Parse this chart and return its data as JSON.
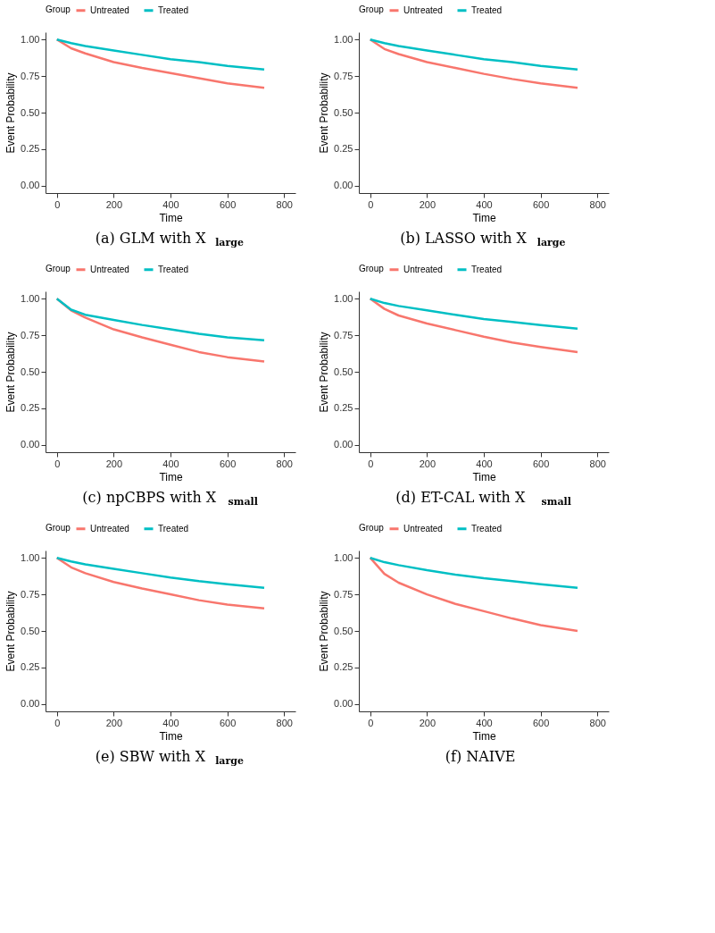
{
  "chart_data": [
    {
      "type": "line",
      "title": "(a) GLM with X$_{large}$",
      "xlabel": "Time",
      "ylabel": "Event Probability",
      "legend_title": "Group",
      "legend": "top",
      "grid": false,
      "line_style": "solid",
      "xlim": [
        -40,
        840
      ],
      "xticks": [
        0,
        200,
        400,
        600,
        800
      ],
      "ylim": [
        -0.05,
        1.05
      ],
      "yticks": [
        {
          "value": 0,
          "label": "0.00"
        },
        {
          "value": 0.25,
          "label": "0.25"
        },
        {
          "value": 0.5,
          "label": "0.50"
        },
        {
          "value": 0.75,
          "label": "0.75"
        },
        {
          "value": 1,
          "label": "1.00"
        }
      ],
      "x": [
        0,
        50,
        100,
        200,
        300,
        400,
        500,
        600,
        730
      ],
      "series": [
        {
          "name": "Untreated",
          "color": "#f8766d",
          "values": [
            1.0,
            0.94,
            0.905,
            0.845,
            0.805,
            0.77,
            0.735,
            0.7,
            0.67
          ]
        },
        {
          "name": "Treated",
          "color": "#00bfc4",
          "values": [
            1.0,
            0.975,
            0.955,
            0.925,
            0.895,
            0.865,
            0.845,
            0.82,
            0.795
          ]
        }
      ]
    },
    {
      "type": "line",
      "title": "(b) LASSO with X$_{large}$",
      "xlabel": "Time",
      "ylabel": "Event Probability",
      "legend_title": "Group",
      "legend": "top",
      "grid": false,
      "line_style": "solid",
      "xlim": [
        -40,
        840
      ],
      "xticks": [
        0,
        200,
        400,
        600,
        800
      ],
      "ylim": [
        -0.05,
        1.05
      ],
      "yticks": [
        {
          "value": 0,
          "label": "0.00"
        },
        {
          "value": 0.25,
          "label": "0.25"
        },
        {
          "value": 0.5,
          "label": "0.50"
        },
        {
          "value": 0.75,
          "label": "0.75"
        },
        {
          "value": 1,
          "label": "1.00"
        }
      ],
      "x": [
        0,
        50,
        100,
        200,
        300,
        400,
        500,
        600,
        730
      ],
      "series": [
        {
          "name": "Untreated",
          "color": "#f8766d",
          "values": [
            1.0,
            0.935,
            0.9,
            0.845,
            0.805,
            0.765,
            0.73,
            0.7,
            0.67
          ]
        },
        {
          "name": "Treated",
          "color": "#00bfc4",
          "values": [
            1.0,
            0.975,
            0.955,
            0.925,
            0.895,
            0.865,
            0.845,
            0.82,
            0.795
          ]
        }
      ]
    },
    {
      "type": "line",
      "title": "(c) npCBPS with X$_{small}$",
      "xlabel": "Time",
      "ylabel": "Event Probability",
      "legend_title": "Group",
      "legend": "top",
      "grid": false,
      "line_style": "solid",
      "xlim": [
        -40,
        840
      ],
      "xticks": [
        0,
        200,
        400,
        600,
        800
      ],
      "ylim": [
        -0.05,
        1.05
      ],
      "yticks": [
        {
          "value": 0,
          "label": "0.00"
        },
        {
          "value": 0.25,
          "label": "0.25"
        },
        {
          "value": 0.5,
          "label": "0.50"
        },
        {
          "value": 0.75,
          "label": "0.75"
        },
        {
          "value": 1,
          "label": "1.00"
        }
      ],
      "x": [
        0,
        50,
        100,
        200,
        300,
        400,
        500,
        600,
        730
      ],
      "series": [
        {
          "name": "Untreated",
          "color": "#f8766d",
          "values": [
            1.0,
            0.92,
            0.87,
            0.79,
            0.735,
            0.685,
            0.635,
            0.6,
            0.57
          ]
        },
        {
          "name": "Treated",
          "color": "#00bfc4",
          "values": [
            1.0,
            0.925,
            0.89,
            0.855,
            0.82,
            0.79,
            0.76,
            0.735,
            0.715
          ]
        }
      ]
    },
    {
      "type": "line",
      "title": "(d) ET-CAL with X$_{small}$",
      "xlabel": "Time",
      "ylabel": "Event Probability",
      "legend_title": "Group",
      "legend": "top",
      "grid": false,
      "line_style": "solid",
      "xlim": [
        -40,
        840
      ],
      "xticks": [
        0,
        200,
        400,
        600,
        800
      ],
      "ylim": [
        -0.05,
        1.05
      ],
      "yticks": [
        {
          "value": 0,
          "label": "0.00"
        },
        {
          "value": 0.25,
          "label": "0.25"
        },
        {
          "value": 0.5,
          "label": "0.50"
        },
        {
          "value": 0.75,
          "label": "0.75"
        },
        {
          "value": 1,
          "label": "1.00"
        }
      ],
      "x": [
        0,
        50,
        100,
        200,
        300,
        400,
        500,
        600,
        730
      ],
      "series": [
        {
          "name": "Untreated",
          "color": "#f8766d",
          "values": [
            1.0,
            0.93,
            0.885,
            0.83,
            0.785,
            0.74,
            0.7,
            0.67,
            0.635
          ]
        },
        {
          "name": "Treated",
          "color": "#00bfc4",
          "values": [
            1.0,
            0.97,
            0.95,
            0.92,
            0.89,
            0.86,
            0.84,
            0.82,
            0.795
          ]
        }
      ]
    },
    {
      "type": "line",
      "title": "(e) SBW with X$_{large}$",
      "xlabel": "Time",
      "ylabel": "Event Probability",
      "legend_title": "Group",
      "legend": "top",
      "grid": false,
      "line_style": "solid",
      "xlim": [
        -40,
        840
      ],
      "xticks": [
        0,
        200,
        400,
        600,
        800
      ],
      "ylim": [
        -0.05,
        1.05
      ],
      "yticks": [
        {
          "value": 0,
          "label": "0.00"
        },
        {
          "value": 0.25,
          "label": "0.25"
        },
        {
          "value": 0.5,
          "label": "0.50"
        },
        {
          "value": 0.75,
          "label": "0.75"
        },
        {
          "value": 1,
          "label": "1.00"
        }
      ],
      "x": [
        0,
        50,
        100,
        200,
        300,
        400,
        500,
        600,
        730
      ],
      "series": [
        {
          "name": "Untreated",
          "color": "#f8766d",
          "values": [
            1.0,
            0.935,
            0.895,
            0.835,
            0.79,
            0.75,
            0.71,
            0.68,
            0.655
          ]
        },
        {
          "name": "Treated",
          "color": "#00bfc4",
          "values": [
            1.0,
            0.975,
            0.955,
            0.925,
            0.895,
            0.865,
            0.84,
            0.82,
            0.795
          ]
        }
      ]
    },
    {
      "type": "line",
      "title": "(f) NAIVE",
      "xlabel": "Time",
      "ylabel": "Event Probability",
      "legend_title": "Group",
      "legend": "top",
      "grid": false,
      "line_style": "solid",
      "xlim": [
        -40,
        840
      ],
      "xticks": [
        0,
        200,
        400,
        600,
        800
      ],
      "ylim": [
        -0.05,
        1.05
      ],
      "yticks": [
        {
          "value": 0,
          "label": "0.00"
        },
        {
          "value": 0.25,
          "label": "0.25"
        },
        {
          "value": 0.5,
          "label": "0.50"
        },
        {
          "value": 0.75,
          "label": "0.75"
        },
        {
          "value": 1,
          "label": "1.00"
        }
      ],
      "x": [
        0,
        50,
        100,
        200,
        300,
        400,
        500,
        600,
        730
      ],
      "series": [
        {
          "name": "Untreated",
          "color": "#f8766d",
          "values": [
            1.0,
            0.89,
            0.83,
            0.75,
            0.685,
            0.635,
            0.585,
            0.54,
            0.5
          ]
        },
        {
          "name": "Treated",
          "color": "#00bfc4",
          "values": [
            1.0,
            0.97,
            0.95,
            0.915,
            0.885,
            0.86,
            0.84,
            0.82,
            0.795
          ]
        }
      ]
    }
  ]
}
